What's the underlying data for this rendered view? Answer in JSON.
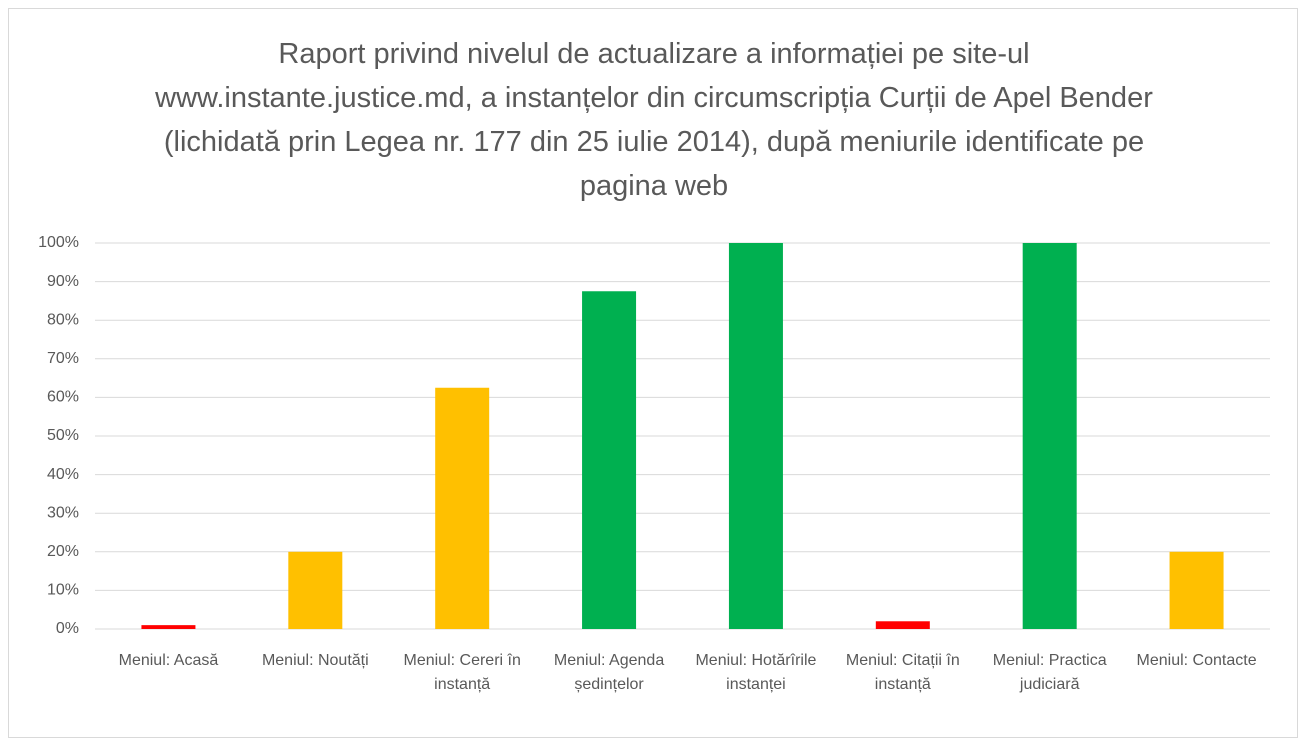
{
  "chart_data": {
    "type": "bar",
    "title": "Raport privind nivelul de actualizare a informației pe site-ul www.instante.justice.md, a instanțelor din circumscripția Curții de Apel Bender (lichidată prin Legea nr. 177 din 25 iulie 2014), după meniurile identificate pe pagina web",
    "categories": [
      "Meniul: Acasă",
      "Meniul: Noutăți",
      "Meniul: Cereri în instanță",
      "Meniul: Agenda ședințelor",
      "Meniul: Hotărîrile instanței",
      "Meniul: Citații în instanță",
      "Meniul: Practica judiciară",
      "Meniul: Contacte"
    ],
    "values": [
      1,
      20,
      62.5,
      87.5,
      100,
      2,
      100,
      20
    ],
    "colors": [
      "#ff0000",
      "#ffc000",
      "#ffc000",
      "#00b050",
      "#00b050",
      "#ff0000",
      "#00b050",
      "#ffc000"
    ],
    "ylim": [
      0,
      100
    ],
    "yticks": [
      {
        "value": 0,
        "label": "0%"
      },
      {
        "value": 10,
        "label": "10%"
      },
      {
        "value": 20,
        "label": "20%"
      },
      {
        "value": 30,
        "label": "30%"
      },
      {
        "value": 40,
        "label": "40%"
      },
      {
        "value": 50,
        "label": "50%"
      },
      {
        "value": 60,
        "label": "60%"
      },
      {
        "value": 70,
        "label": "70%"
      },
      {
        "value": 80,
        "label": "80%"
      },
      {
        "value": 90,
        "label": "90%"
      },
      {
        "value": 100,
        "label": "100%"
      }
    ],
    "grid": true
  }
}
